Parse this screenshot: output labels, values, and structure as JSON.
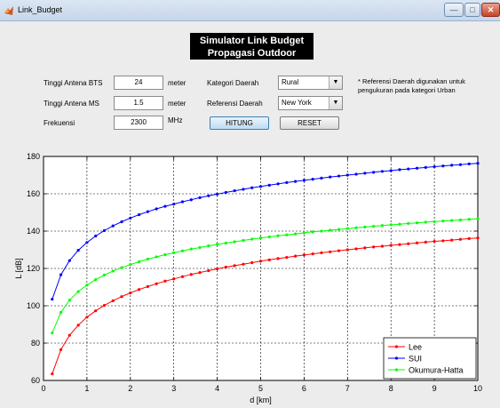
{
  "window": {
    "title": "Link_Budget",
    "minimize": "—",
    "maximize": "□",
    "close": "✕"
  },
  "header": {
    "line1": "Simulator Link Budget",
    "line2": "Propagasi Outdoor"
  },
  "form": {
    "bts_label": "Tinggi Antena BTS",
    "bts_value": "24",
    "bts_unit": "meter",
    "ms_label": "Tinggi Antena MS",
    "ms_value": "1.5",
    "ms_unit": "meter",
    "freq_label": "Frekuensi",
    "freq_value": "2300",
    "freq_unit": "MHz",
    "kategori_label": "Kategori Daerah",
    "kategori_value": "Rural",
    "referensi_label": "Referensi Daerah",
    "referensi_value": "New York",
    "hitung_label": "HITUNG",
    "reset_label": "RESET",
    "note": "* Referensi Daerah digunakan untuk pengukuran pada kategori Urban"
  },
  "chart_data": {
    "type": "line",
    "xlabel": "d [km]",
    "ylabel": "L [dB]",
    "xlim": [
      0,
      10
    ],
    "ylim": [
      60,
      180
    ],
    "xticks": [
      0,
      1,
      2,
      3,
      4,
      5,
      6,
      7,
      8,
      9,
      10
    ],
    "yticks": [
      60,
      80,
      100,
      120,
      140,
      160,
      180
    ],
    "grid": true,
    "legend_position": "bottom-right",
    "x": [
      0.2,
      0.4,
      0.6,
      0.8,
      1.0,
      1.2,
      1.4,
      1.6,
      1.8,
      2.0,
      2.2,
      2.4,
      2.6,
      2.8,
      3.0,
      3.2,
      3.4,
      3.6,
      3.8,
      4.0,
      4.2,
      4.4,
      4.6,
      4.8,
      5.0,
      5.2,
      5.4,
      5.6,
      5.8,
      6.0,
      6.2,
      6.4,
      6.6,
      6.8,
      7.0,
      7.2,
      7.4,
      7.6,
      7.8,
      8.0,
      8.2,
      8.4,
      8.6,
      8.8,
      9.0,
      9.2,
      9.4,
      9.6,
      9.8,
      10.0
    ],
    "series": [
      {
        "name": "Lee",
        "color": "#ff0000",
        "values": [
          63.5,
          76.5,
          84.2,
          89.6,
          93.9,
          97.3,
          100.2,
          102.7,
          104.9,
          106.9,
          108.7,
          110.3,
          111.8,
          113.2,
          114.4,
          115.6,
          116.8,
          117.8,
          118.8,
          119.8,
          120.7,
          121.5,
          122.3,
          123.1,
          123.9,
          124.6,
          125.3,
          125.9,
          126.6,
          127.2,
          127.8,
          128.4,
          128.9,
          129.5,
          130.0,
          130.5,
          131.0,
          131.5,
          131.9,
          132.4,
          132.8,
          133.2,
          133.7,
          134.1,
          134.5,
          134.8,
          135.2,
          135.6,
          136.0,
          136.3
        ]
      },
      {
        "name": "SUI",
        "color": "#0000ff",
        "values": [
          103.5,
          116.6,
          124.2,
          129.7,
          133.9,
          137.4,
          140.3,
          142.8,
          145.0,
          147.0,
          148.8,
          150.4,
          151.9,
          153.3,
          154.5,
          155.7,
          156.8,
          157.9,
          158.9,
          159.8,
          160.7,
          161.6,
          162.4,
          163.2,
          163.9,
          164.6,
          165.3,
          166.0,
          166.6,
          167.2,
          167.8,
          168.4,
          169.0,
          169.5,
          170.0,
          170.5,
          171.0,
          171.5,
          172.0,
          172.4,
          172.9,
          173.3,
          173.7,
          174.1,
          174.5,
          174.9,
          175.3,
          175.6,
          176.0,
          176.3
        ]
      },
      {
        "name": "Okumura-Hatta",
        "color": "#00ff00",
        "values": [
          85.5,
          96.5,
          103.0,
          107.6,
          111.1,
          114.0,
          116.5,
          118.6,
          120.4,
          122.1,
          123.6,
          125.0,
          126.2,
          127.4,
          128.4,
          129.4,
          130.4,
          131.2,
          132.1,
          132.9,
          133.6,
          134.3,
          135.0,
          135.7,
          136.3,
          136.9,
          137.5,
          138.0,
          138.5,
          139.1,
          139.6,
          140.0,
          140.5,
          140.9,
          141.4,
          141.8,
          142.2,
          142.6,
          143.0,
          143.4,
          143.7,
          144.1,
          144.4,
          144.8,
          145.1,
          145.4,
          145.7,
          146.0,
          146.3,
          146.6
        ]
      }
    ]
  }
}
